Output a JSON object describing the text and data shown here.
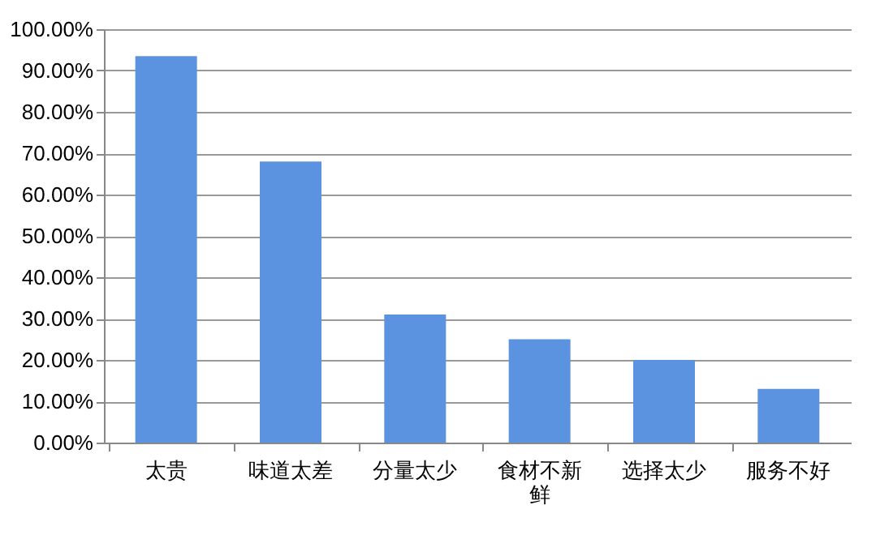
{
  "chart_data": {
    "type": "bar",
    "categories": [
      "太贵",
      "味道太差",
      "分量太少",
      "食材不新鲜",
      "选择太少",
      "服务不好"
    ],
    "values": [
      93.5,
      68,
      31,
      25,
      20,
      13
    ],
    "color": "#5b93e0",
    "ylim": [
      0,
      100
    ],
    "yticks": [
      {
        "value": 0,
        "label": "0.00%"
      },
      {
        "value": 10,
        "label": "10.00%"
      },
      {
        "value": 20,
        "label": "20.00%"
      },
      {
        "value": 30,
        "label": "30.00%"
      },
      {
        "value": 40,
        "label": "40.00%"
      },
      {
        "value": 50,
        "label": "50.00%"
      },
      {
        "value": 60,
        "label": "60.00%"
      },
      {
        "value": 70,
        "label": "70.00%"
      },
      {
        "value": 80,
        "label": "80.00%"
      },
      {
        "value": 90,
        "label": "90.00%"
      },
      {
        "value": 100,
        "label": "100.00%"
      }
    ],
    "grid": "y"
  }
}
